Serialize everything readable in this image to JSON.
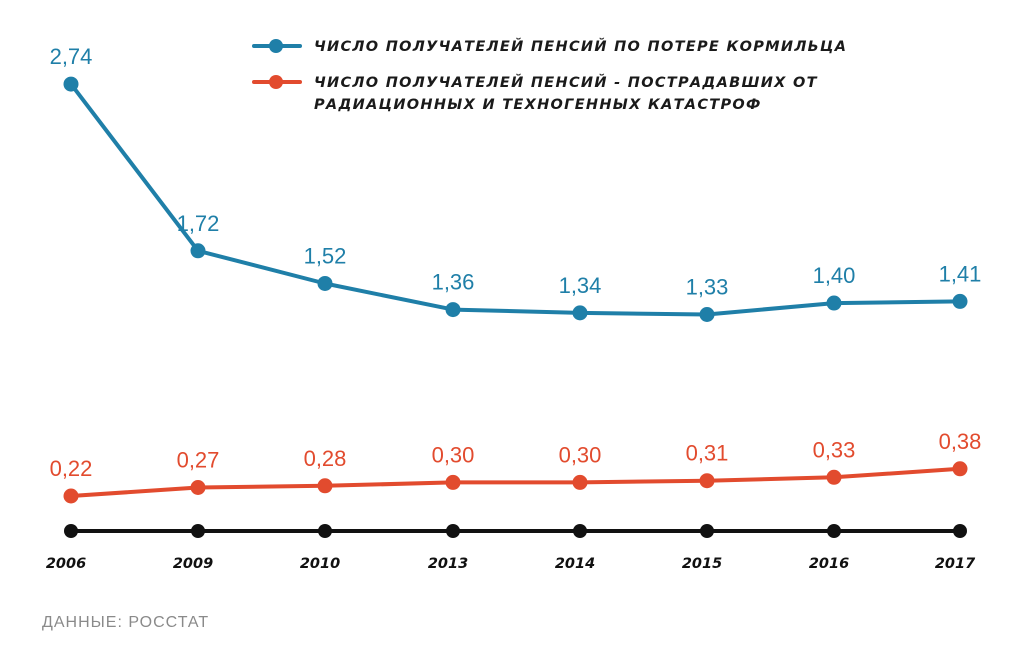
{
  "chart_data": {
    "type": "line",
    "categories": [
      "2006",
      "2009",
      "2010",
      "2013",
      "2014",
      "2015",
      "2016",
      "2017"
    ],
    "series": [
      {
        "name": "ЧИСЛО ПОЛУЧАТЕЛЕЙ ПЕНСИЙ ПО ПОТЕРЕ КОРМИЛЬЦА",
        "color": "#1f7fa8",
        "values": [
          2.74,
          1.72,
          1.52,
          1.36,
          1.34,
          1.33,
          1.4,
          1.41
        ],
        "labels": [
          "2,74",
          "1,72",
          "1,52",
          "1,36",
          "1,34",
          "1,33",
          "1,40",
          "1,41"
        ]
      },
      {
        "name": "ЧИСЛО ПОЛУЧАТЕЛЕЙ ПЕНСИЙ - ПОСТРАДАВШИХ ОТ РАДИАЦИОННЫХ И ТЕХНОГЕННЫХ КАТАСТРОФ",
        "color": "#e24b2e",
        "values": [
          0.22,
          0.27,
          0.28,
          0.3,
          0.3,
          0.31,
          0.33,
          0.38
        ],
        "labels": [
          "0,22",
          "0,27",
          "0,28",
          "0,30",
          "0,30",
          "0,31",
          "0,33",
          "0,38"
        ]
      }
    ],
    "axis_color": "#111111",
    "legend": "top-right",
    "grid": false,
    "source": "ДАННЫЕ: РОССТАТ"
  }
}
